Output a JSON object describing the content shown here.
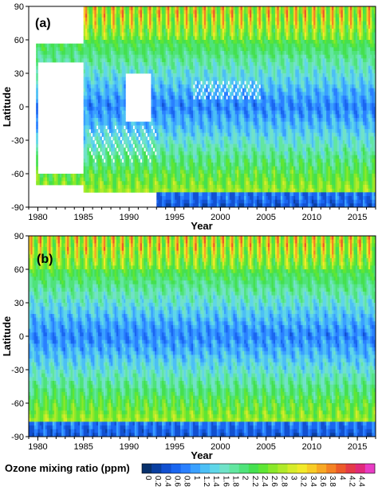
{
  "chart_data": [
    {
      "type": "heatmap",
      "panel_label": "(a)",
      "xlabel": "Year",
      "ylabel": "Latitude",
      "x_ticks": [
        "1980",
        "1985",
        "1990",
        "1995",
        "2000",
        "2005",
        "2010",
        "2015"
      ],
      "x_tick_values": [
        1980,
        1985,
        1990,
        1995,
        2000,
        2005,
        2010,
        2015
      ],
      "y_ticks": [
        "90",
        "60",
        "30",
        "0",
        "-30",
        "-60",
        "-90"
      ],
      "y_tick_values": [
        90,
        60,
        30,
        0,
        -30,
        -60,
        -90
      ],
      "xlim": [
        1979,
        2017
      ],
      "ylim": [
        -90,
        90
      ],
      "seasonal_cycle": true,
      "data_gaps": true,
      "value_range": [
        0,
        4.6
      ]
    },
    {
      "type": "heatmap",
      "panel_label": "(b)",
      "xlabel": "Year",
      "ylabel": "Latitude",
      "x_ticks": [
        "1980",
        "1985",
        "1990",
        "1995",
        "2000",
        "2005",
        "2010",
        "2015"
      ],
      "x_tick_values": [
        1980,
        1985,
        1990,
        1995,
        2000,
        2005,
        2010,
        2015
      ],
      "y_ticks": [
        "90",
        "60",
        "30",
        "0",
        "-30",
        "-60",
        "-90"
      ],
      "y_tick_values": [
        90,
        60,
        30,
        0,
        -30,
        -60,
        -90
      ],
      "xlim": [
        1979,
        2017
      ],
      "ylim": [
        -90,
        90
      ],
      "seasonal_cycle": true,
      "data_gaps": false,
      "value_range": [
        0,
        4.6
      ]
    }
  ],
  "colorbar": {
    "title": "Ozone mixing ratio (ppm)",
    "ticks": [
      "0",
      "0.2",
      "0.4",
      "0.6",
      "0.8",
      "1",
      "1.2",
      "1.4",
      "1.6",
      "1.8",
      "2",
      "2.2",
      "2.4",
      "2.6",
      "2.8",
      "3",
      "3.2",
      "3.4",
      "3.6",
      "3.8",
      "4",
      "4.2",
      "4.4"
    ],
    "colors": [
      "#08306b",
      "#0a3fa0",
      "#1250d0",
      "#1a66f0",
      "#2a80ff",
      "#3aa0ff",
      "#4cbff5",
      "#5fd6e8",
      "#70e2c8",
      "#62e6a0",
      "#4fe37a",
      "#45e050",
      "#5ee635",
      "#8ae82a",
      "#b0ea2a",
      "#d6ec2a",
      "#f2ea2a",
      "#f8cc26",
      "#f8a824",
      "#f48224",
      "#ec5a2a",
      "#e43a48",
      "#e02a7a",
      "#e83cc4"
    ]
  }
}
